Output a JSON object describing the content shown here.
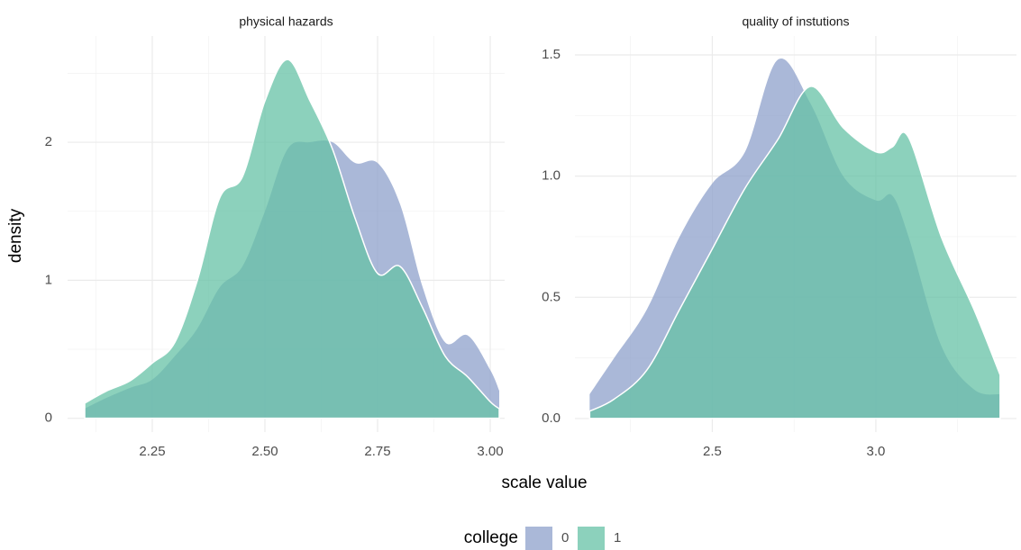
{
  "xlabel": "scale value",
  "ylabel": "density",
  "legend_title": "college",
  "chart_data": [
    {
      "type": "area",
      "title": "physical hazards",
      "x": [
        2.1,
        2.15,
        2.2,
        2.25,
        2.3,
        2.35,
        2.4,
        2.45,
        2.5,
        2.55,
        2.6,
        2.65,
        2.7,
        2.75,
        2.8,
        2.85,
        2.9,
        2.95,
        3.0,
        3.02
      ],
      "series": [
        {
          "name": "0",
          "color": "#8da0cb",
          "values": [
            0.07,
            0.15,
            0.22,
            0.28,
            0.45,
            0.65,
            0.95,
            1.1,
            1.5,
            1.95,
            2.0,
            2.0,
            1.85,
            1.85,
            1.55,
            0.95,
            0.55,
            0.6,
            0.35,
            0.2
          ]
        },
        {
          "name": "1",
          "color": "#66c2a5",
          "values": [
            0.11,
            0.2,
            0.27,
            0.4,
            0.55,
            1.0,
            1.6,
            1.75,
            2.3,
            2.6,
            2.3,
            1.95,
            1.45,
            1.05,
            1.1,
            0.8,
            0.45,
            0.3,
            0.12,
            0.07
          ]
        }
      ],
      "xlim": [
        2.062,
        3.032
      ],
      "ylim": [
        -0.1,
        2.77
      ],
      "xticks": [
        2.25,
        {
          "value": 2.5,
          "label": "2.50"
        },
        2.75,
        {
          "value": 3.0,
          "label": "3.00"
        }
      ],
      "yticks": [
        0,
        1,
        2
      ],
      "grid": true
    },
    {
      "type": "area",
      "title": "quality of instutions",
      "x": [
        2.125,
        2.2,
        2.3,
        2.4,
        2.5,
        2.6,
        2.7,
        2.8,
        2.9,
        3.0,
        3.05,
        3.1,
        3.2,
        3.3,
        3.38
      ],
      "series": [
        {
          "name": "0",
          "color": "#8da0cb",
          "values": [
            0.1,
            0.25,
            0.45,
            0.75,
            0.97,
            1.1,
            1.48,
            1.3,
            1.0,
            0.9,
            0.92,
            0.75,
            0.3,
            0.12,
            0.1
          ]
        },
        {
          "name": "1",
          "color": "#66c2a5",
          "values": [
            0.03,
            0.08,
            0.2,
            0.45,
            0.7,
            0.95,
            1.15,
            1.37,
            1.2,
            1.1,
            1.12,
            1.16,
            0.75,
            0.45,
            0.18
          ]
        }
      ],
      "xlim": [
        2.08,
        3.43
      ],
      "ylim": [
        -0.056,
        1.578
      ],
      "xticks": [
        2.5,
        {
          "value": 3.0,
          "label": "3.0"
        }
      ],
      "yticks": [
        {
          "value": 0,
          "label": "0.0"
        },
        0.5,
        {
          "value": 1.0,
          "label": "1.0"
        },
        1.5
      ],
      "grid": true
    }
  ]
}
